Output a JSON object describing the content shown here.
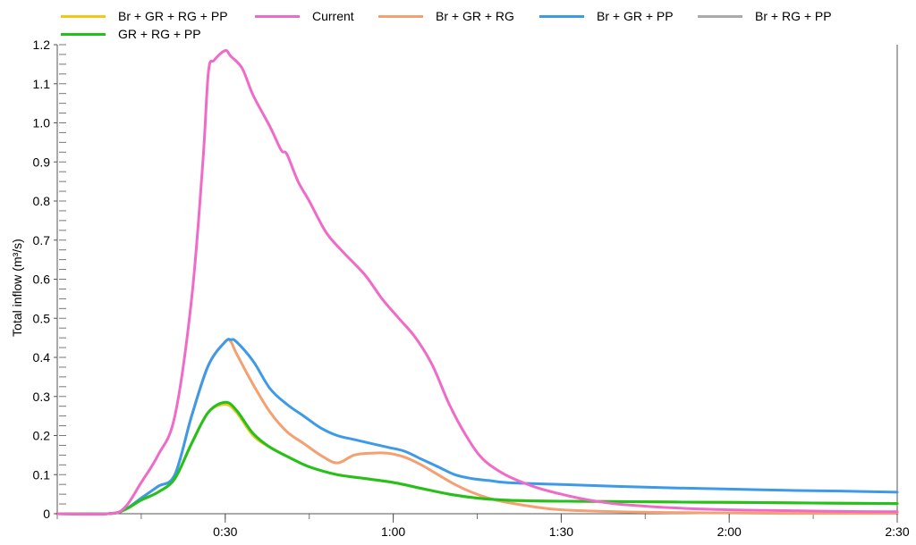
{
  "chart_data": {
    "type": "line",
    "title": "",
    "xlabel": "",
    "ylabel": "Total inflow (m³/s)",
    "xlim": [
      0,
      150
    ],
    "ylim": [
      0,
      1.2
    ],
    "x_ticks": [
      {
        "value": 30,
        "label": "0:30"
      },
      {
        "value": 60,
        "label": "1:00"
      },
      {
        "value": 90,
        "label": "1:30"
      },
      {
        "value": 120,
        "label": "2:00"
      },
      {
        "value": 150,
        "label": "2:30"
      }
    ],
    "y_ticks": [
      {
        "value": 0,
        "label": "0"
      },
      {
        "value": 0.1,
        "label": "0.1"
      },
      {
        "value": 0.2,
        "label": "0.2"
      },
      {
        "value": 0.3,
        "label": "0.3"
      },
      {
        "value": 0.4,
        "label": "0.4"
      },
      {
        "value": 0.5,
        "label": "0.5"
      },
      {
        "value": 0.6,
        "label": "0.6"
      },
      {
        "value": 0.7,
        "label": "0.7"
      },
      {
        "value": 0.8,
        "label": "0.8"
      },
      {
        "value": 0.9,
        "label": "0.9"
      },
      {
        "value": 1.0,
        "label": "1.0"
      },
      {
        "value": 1.1,
        "label": "1.1"
      },
      {
        "value": 1.2,
        "label": "1.2"
      }
    ],
    "legend_position": "top",
    "series": [
      {
        "name": "Br + GR + RG + PP",
        "color": "#f5c518",
        "x": [
          0,
          9,
          12,
          15,
          18,
          21,
          24,
          27,
          30,
          32,
          35,
          38,
          42,
          45,
          50,
          55,
          60,
          65,
          70,
          75,
          80,
          85,
          90,
          100,
          110,
          120,
          130,
          140,
          150
        ],
        "y": [
          0,
          0,
          0.01,
          0.035,
          0.055,
          0.09,
          0.18,
          0.26,
          0.28,
          0.26,
          0.2,
          0.17,
          0.14,
          0.12,
          0.1,
          0.09,
          0.08,
          0.065,
          0.05,
          0.04,
          0.035,
          0.033,
          0.032,
          0.031,
          0.03,
          0.029,
          0.028,
          0.027,
          0.026
        ]
      },
      {
        "name": "Current",
        "color": "#f06ac8",
        "x": [
          0,
          9,
          12,
          15,
          18,
          21,
          24,
          26,
          27,
          28,
          30,
          31,
          33,
          35,
          38,
          40,
          41,
          43,
          45,
          48,
          51,
          55,
          58,
          61,
          64,
          67,
          70,
          73,
          76,
          80,
          85,
          90,
          95,
          100,
          110,
          120,
          130,
          140,
          150
        ],
        "y": [
          0,
          0,
          0.015,
          0.08,
          0.15,
          0.25,
          0.55,
          0.9,
          1.13,
          1.16,
          1.185,
          1.17,
          1.14,
          1.07,
          0.99,
          0.93,
          0.92,
          0.85,
          0.8,
          0.72,
          0.67,
          0.61,
          0.55,
          0.5,
          0.45,
          0.38,
          0.28,
          0.2,
          0.14,
          0.1,
          0.07,
          0.05,
          0.035,
          0.025,
          0.015,
          0.01,
          0.008,
          0.006,
          0.005
        ]
      },
      {
        "name": "Br + GR + RG",
        "color": "#f4a070",
        "x": [
          0,
          9,
          12,
          15,
          18,
          21,
          24,
          27,
          30,
          31,
          32,
          35,
          38,
          41,
          44,
          47,
          50,
          53,
          56,
          59,
          62,
          65,
          68,
          71,
          74,
          77,
          80,
          85,
          90,
          100,
          110,
          120,
          130,
          140,
          150
        ],
        "y": [
          0,
          0,
          0.01,
          0.04,
          0.07,
          0.1,
          0.25,
          0.38,
          0.44,
          0.44,
          0.41,
          0.33,
          0.26,
          0.21,
          0.18,
          0.15,
          0.13,
          0.15,
          0.155,
          0.155,
          0.145,
          0.125,
          0.1,
          0.075,
          0.055,
          0.04,
          0.03,
          0.018,
          0.01,
          0.005,
          0.003,
          0.002,
          0.001,
          0.001,
          0.001
        ]
      },
      {
        "name": "Br + GR + PP",
        "color": "#3d9ae8",
        "x": [
          0,
          9,
          12,
          15,
          18,
          21,
          24,
          27,
          30,
          31,
          32,
          35,
          38,
          41,
          44,
          47,
          50,
          53,
          56,
          59,
          62,
          65,
          68,
          71,
          74,
          77,
          80,
          85,
          90,
          100,
          110,
          120,
          130,
          140,
          150
        ],
        "y": [
          0,
          0,
          0.01,
          0.04,
          0.07,
          0.1,
          0.25,
          0.38,
          0.44,
          0.445,
          0.44,
          0.39,
          0.32,
          0.28,
          0.25,
          0.22,
          0.2,
          0.19,
          0.18,
          0.17,
          0.16,
          0.14,
          0.12,
          0.1,
          0.09,
          0.085,
          0.08,
          0.077,
          0.075,
          0.07,
          0.066,
          0.063,
          0.06,
          0.058,
          0.055
        ]
      },
      {
        "name": "Br + RG + PP",
        "color": "#aaaaaa",
        "x": [
          0,
          9,
          12,
          15,
          18,
          21,
          24,
          27,
          30,
          32,
          35,
          38,
          42,
          45,
          50,
          55,
          60,
          65,
          70,
          75,
          80,
          85,
          90,
          100,
          110,
          120,
          130,
          140,
          150
        ],
        "y": [
          0,
          0,
          0.01,
          0.035,
          0.055,
          0.09,
          0.18,
          0.26,
          0.28,
          0.26,
          0.2,
          0.17,
          0.14,
          0.12,
          0.1,
          0.09,
          0.08,
          0.065,
          0.05,
          0.04,
          0.035,
          0.033,
          0.032,
          0.031,
          0.03,
          0.029,
          0.028,
          0.027,
          0.026
        ]
      },
      {
        "name": "GR + RG + PP",
        "color": "#22c21d",
        "x": [
          0,
          9,
          12,
          15,
          18,
          21,
          24,
          27,
          30,
          32,
          35,
          38,
          42,
          45,
          50,
          55,
          60,
          65,
          70,
          75,
          80,
          85,
          90,
          100,
          110,
          120,
          130,
          140,
          150
        ],
        "y": [
          0,
          0,
          0.01,
          0.035,
          0.055,
          0.09,
          0.18,
          0.26,
          0.285,
          0.265,
          0.205,
          0.17,
          0.14,
          0.12,
          0.1,
          0.09,
          0.08,
          0.065,
          0.05,
          0.04,
          0.035,
          0.033,
          0.032,
          0.031,
          0.03,
          0.029,
          0.028,
          0.027,
          0.026
        ]
      }
    ]
  }
}
